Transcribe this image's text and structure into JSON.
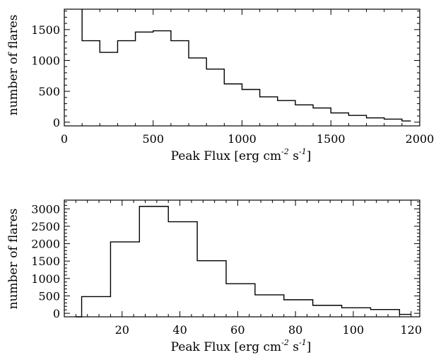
{
  "chart_data": [
    {
      "type": "histogram",
      "title": "",
      "xlabel": {
        "main": "Peak Flux [erg cm",
        "exp1": "-2",
        "mid": " s",
        "exp2": "-1",
        "end": "]"
      },
      "ylabel": "number of flares",
      "xlim": [
        0,
        2000
      ],
      "ylim": [
        -60,
        1830
      ],
      "xticks": [
        "0",
        "500",
        "1000",
        "1500",
        "2000"
      ],
      "xtick_values": [
        0,
        500,
        1000,
        1500,
        2000
      ],
      "yticks": [
        "0",
        "500",
        "1000",
        "1500"
      ],
      "ytick_values": [
        0,
        500,
        1000,
        1500
      ],
      "grid": false,
      "bin_edges": [
        100,
        200,
        300,
        400,
        500,
        600,
        700,
        800,
        900,
        1000,
        1100,
        1200,
        1300,
        1400,
        1500,
        1600,
        1700,
        1800,
        1900,
        1950
      ],
      "counts": [
        1320,
        1130,
        1320,
        1460,
        1480,
        1320,
        1040,
        860,
        620,
        530,
        410,
        350,
        280,
        230,
        150,
        110,
        70,
        50,
        20
      ],
      "first_bin_exceeds_top": true,
      "first_bin_value": 1830,
      "series_color": "#000000"
    },
    {
      "type": "histogram",
      "title": "",
      "xlabel": {
        "main": "Peak Flux [erg cm",
        "exp1": "-2",
        "mid": " s",
        "exp2": "-1",
        "end": "]"
      },
      "ylabel": "number of flares",
      "xlim": [
        0,
        123
      ],
      "ylim": [
        -100,
        3250
      ],
      "xticks": [
        "20",
        "40",
        "60",
        "80",
        "100",
        "120"
      ],
      "xtick_values": [
        20,
        40,
        60,
        80,
        100,
        120
      ],
      "yticks": [
        "0",
        "500",
        "1000",
        "1500",
        "2000",
        "2500",
        "3000"
      ],
      "ytick_values": [
        0,
        500,
        1000,
        1500,
        2000,
        2500,
        3000
      ],
      "grid": false,
      "bin_edges": [
        4,
        6,
        16,
        26,
        36,
        46,
        56,
        66,
        76,
        86,
        96,
        106,
        116,
        120
      ],
      "counts": [
        -100,
        480,
        2050,
        3070,
        2630,
        1510,
        850,
        530,
        390,
        230,
        160,
        110,
        -30
      ],
      "first_bin_exceeds_top": false,
      "series_color": "#000000"
    }
  ]
}
